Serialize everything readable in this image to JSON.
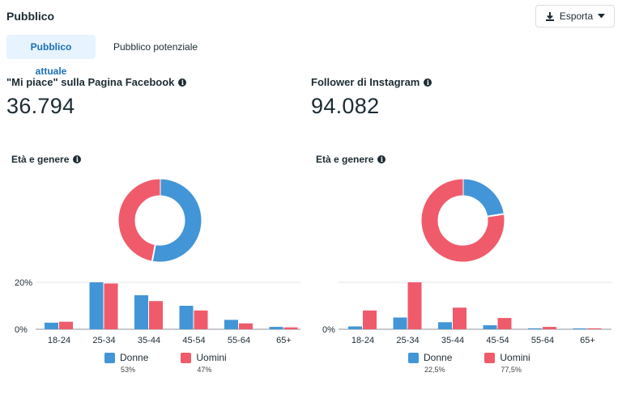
{
  "header": {
    "title": "Pubblico",
    "export_label": "Esporta"
  },
  "tabs": [
    {
      "label": "Pubblico attuale",
      "active": true
    },
    {
      "label": "Pubblico potenziale",
      "active": false
    }
  ],
  "metrics": [
    {
      "label": "\"Mi piace\" sulla Pagina Facebook",
      "value": "36.794"
    },
    {
      "label": "Follower di Instagram",
      "value": "94.082"
    }
  ],
  "colors": {
    "donne": "#4295d6",
    "uomini": "#ef5b6b"
  },
  "panels": [
    {
      "section_title": "Età e genere",
      "legend": [
        {
          "label": "Donne",
          "pct": "53%"
        },
        {
          "label": "Uomini",
          "pct": "47%"
        }
      ]
    },
    {
      "section_title": "Età e genere",
      "legend": [
        {
          "label": "Donne",
          "pct": "22,5%"
        },
        {
          "label": "Uomini",
          "pct": "77,5%"
        }
      ]
    }
  ],
  "chart_data": [
    {
      "type": "pie",
      "donut": true,
      "categories": [
        "Donne",
        "Uomini"
      ],
      "values": [
        53,
        47
      ]
    },
    {
      "type": "bar",
      "categories": [
        "18-24",
        "25-34",
        "35-44",
        "45-54",
        "55-64",
        "65+"
      ],
      "series": [
        {
          "name": "Donne",
          "values": [
            2.8,
            20,
            14.5,
            10,
            4,
            1
          ]
        },
        {
          "name": "Uomini",
          "values": [
            3.2,
            19.5,
            12,
            8,
            2.5,
            0.8
          ]
        }
      ],
      "y_ticks": [
        "20%",
        "0%"
      ],
      "ylim": [
        0,
        20
      ]
    },
    {
      "type": "pie",
      "donut": true,
      "categories": [
        "Donne",
        "Uomini"
      ],
      "values": [
        22.5,
        77.5
      ]
    },
    {
      "type": "bar",
      "categories": [
        "18-24",
        "25-34",
        "35-44",
        "45-54",
        "55-64",
        "65+"
      ],
      "series": [
        {
          "name": "Donne",
          "values": [
            1.2,
            5,
            3,
            1.7,
            0.4,
            0.2
          ]
        },
        {
          "name": "Uomini",
          "values": [
            8,
            20,
            9.2,
            4.8,
            1,
            0.4
          ]
        }
      ],
      "y_ticks": [
        "0%"
      ],
      "ylim": [
        0,
        20
      ]
    }
  ]
}
